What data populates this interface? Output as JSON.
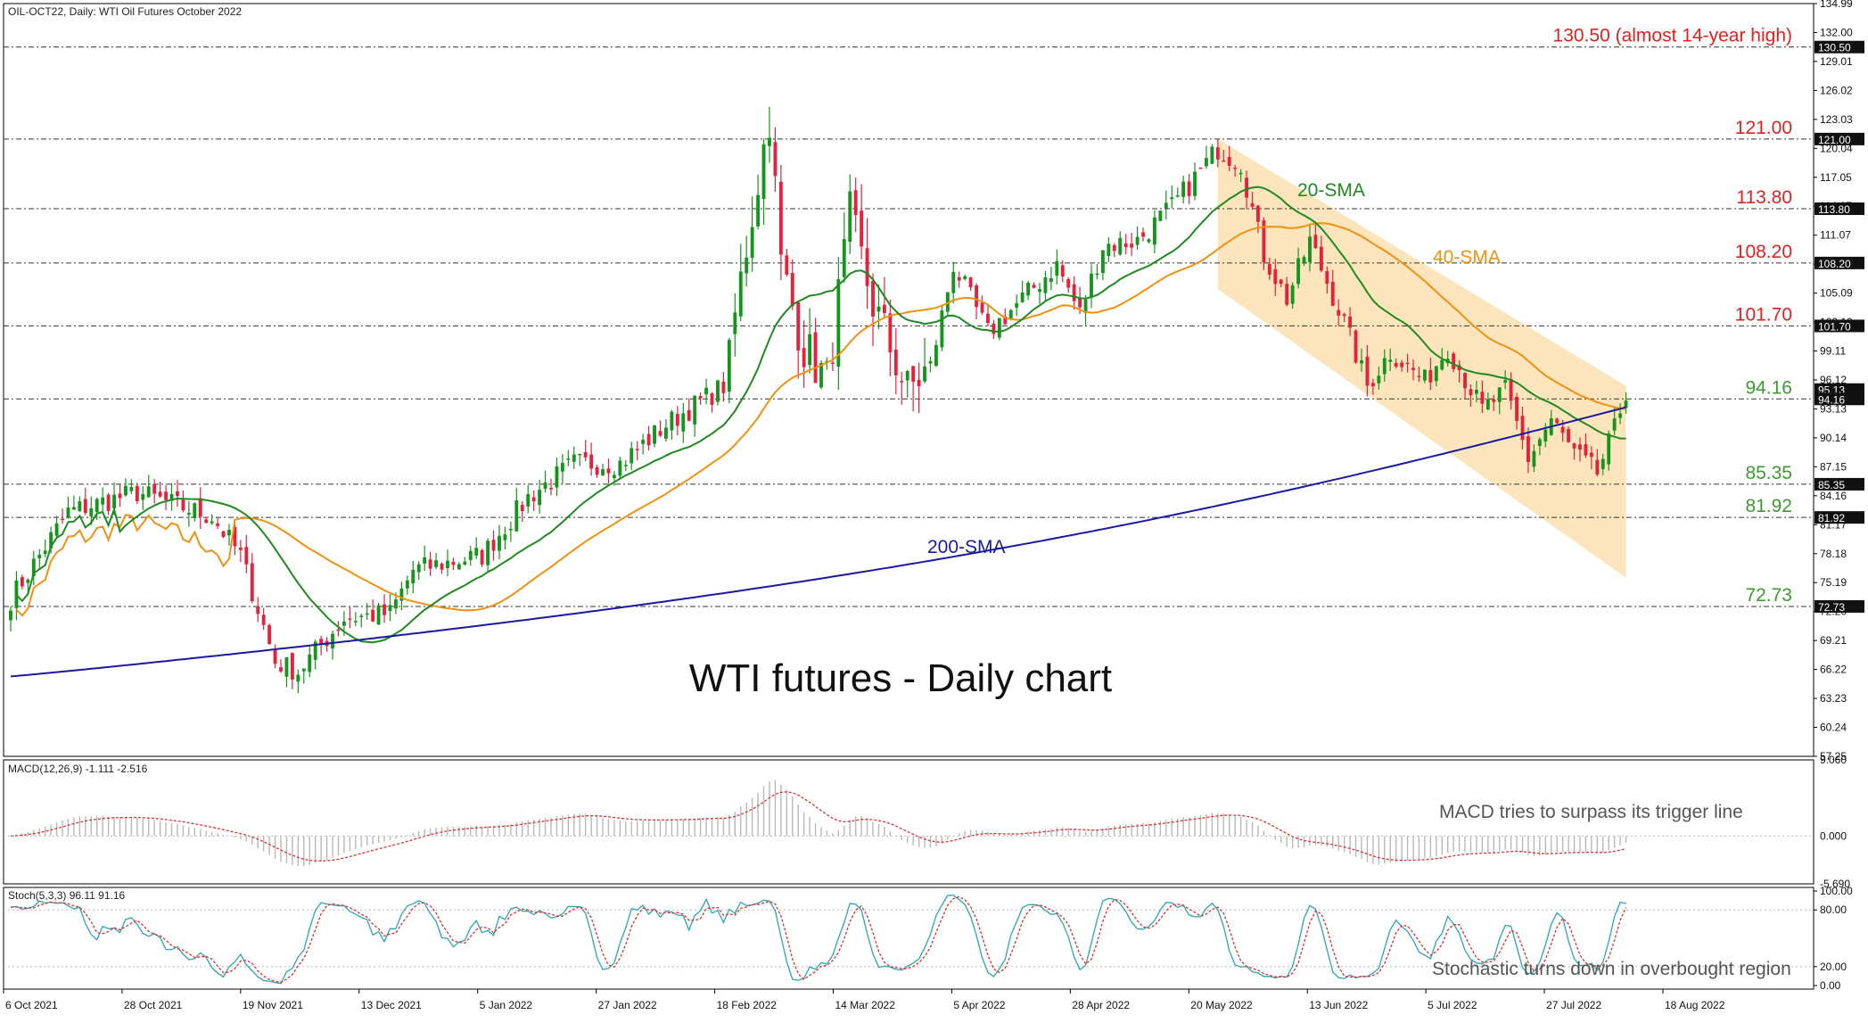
{
  "header": {
    "symbol_line": "OIL-OCT22, Daily:  WTI Oil Futures October 2022"
  },
  "title": "WTI futures - Daily chart",
  "annotations": {
    "sma20": "20-SMA",
    "sma40": "40-SMA",
    "sma200": "200-SMA",
    "macd_note": "MACD tries to surpass its trigger line",
    "stoch_note": "Stochastic turns down in overbought region"
  },
  "colors": {
    "up": "#16951c",
    "down": "#e5213c",
    "sma20": "#1f8a1f",
    "sma40": "#f29111",
    "sma200": "#1a1aa0",
    "channel": "#fbe0b0",
    "level_red": "#e32020",
    "level_green": "#3c9b2f",
    "stoch_k": "#2aa6b4",
    "stoch_d": "#e03030"
  },
  "price_axis": {
    "min": 57.25,
    "max": 134.99,
    "ticks": [
      "134.99",
      "132.00",
      "129.01",
      "126.02",
      "123.03",
      "120.04",
      "117.05",
      "114.07",
      "111.07",
      "108.08",
      "105.09",
      "102.10",
      "99.11",
      "96.12",
      "93.13",
      "90.14",
      "87.15",
      "84.16",
      "81.17",
      "78.18",
      "75.19",
      "72.20",
      "69.21",
      "66.22",
      "63.23",
      "60.24",
      "57.25"
    ],
    "level_flags": [
      "130.50",
      "121.00",
      "113.80",
      "108.20",
      "101.70",
      "95.13",
      "94.16",
      "85.35",
      "81.92",
      "72.73"
    ]
  },
  "time_axis": {
    "labels": [
      "6 Oct 2021",
      "28 Oct 2021",
      "19 Nov 2021",
      "13 Dec 2021",
      "5 Jan 2022",
      "27 Jan 2022",
      "18 Feb 2022",
      "14 Mar 2022",
      "5 Apr 2022",
      "28 Apr 2022",
      "20 May 2022",
      "13 Jun 2022",
      "5 Jul 2022",
      "27 Jul 2022",
      "18 Aug 2022"
    ]
  },
  "levels": [
    {
      "value": 130.5,
      "label": "130.50 (almost 14-year high)",
      "color": "red"
    },
    {
      "value": 121.0,
      "label": "121.00",
      "color": "red"
    },
    {
      "value": 113.8,
      "label": "113.80",
      "color": "red"
    },
    {
      "value": 108.2,
      "label": "108.20",
      "color": "red"
    },
    {
      "value": 101.7,
      "label": "101.70",
      "color": "red"
    },
    {
      "value": 94.16,
      "label": "94.16",
      "color": "green"
    },
    {
      "value": 85.35,
      "label": "85.35",
      "color": "green"
    },
    {
      "value": 81.92,
      "label": "81.92",
      "color": "green"
    },
    {
      "value": 72.73,
      "label": "72.73",
      "color": "green"
    }
  ],
  "macd": {
    "label": "MACD(12,26,9) -1.111 -2.516",
    "ticks": [
      "9.060",
      "0.000",
      "-5.690"
    ]
  },
  "stoch": {
    "label": "Stoch(5,3,3) 96.11 91.16",
    "ticks": [
      "100.00",
      "80.00",
      "20.00",
      "0.00"
    ]
  },
  "chart_data": {
    "type": "candlestick",
    "instrument": "OIL-OCT22",
    "timeframe": "Daily",
    "description": "WTI Oil Futures October 2022",
    "ylim": [
      57.25,
      134.99
    ],
    "anchors": [
      {
        "x": 0,
        "close": 73.5
      },
      {
        "x": 10,
        "close": 82.5
      },
      {
        "x": 22,
        "close": 84.5
      },
      {
        "x": 35,
        "close": 82.0
      },
      {
        "x": 40,
        "close": 78.0
      },
      {
        "x": 46,
        "close": 67.0
      },
      {
        "x": 50,
        "close": 66.0
      },
      {
        "x": 58,
        "close": 71.5
      },
      {
        "x": 66,
        "close": 72.0
      },
      {
        "x": 70,
        "close": 76.5
      },
      {
        "x": 82,
        "close": 78.0
      },
      {
        "x": 90,
        "close": 84.0
      },
      {
        "x": 98,
        "close": 87.5
      },
      {
        "x": 106,
        "close": 87.5
      },
      {
        "x": 114,
        "close": 91.5
      },
      {
        "x": 124,
        "close": 95.5
      },
      {
        "x": 128,
        "close": 110.0
      },
      {
        "x": 132,
        "close": 123.5
      },
      {
        "x": 134,
        "close": 108.0
      },
      {
        "x": 138,
        "close": 99.5
      },
      {
        "x": 142,
        "close": 96.0
      },
      {
        "x": 146,
        "close": 113.0
      },
      {
        "x": 150,
        "close": 104.0
      },
      {
        "x": 156,
        "close": 95.0
      },
      {
        "x": 160,
        "close": 97.5
      },
      {
        "x": 164,
        "close": 108.0
      },
      {
        "x": 170,
        "close": 101.0
      },
      {
        "x": 176,
        "close": 104.5
      },
      {
        "x": 182,
        "close": 108.0
      },
      {
        "x": 186,
        "close": 103.0
      },
      {
        "x": 190,
        "close": 110.0
      },
      {
        "x": 196,
        "close": 110.5
      },
      {
        "x": 202,
        "close": 114.0
      },
      {
        "x": 210,
        "close": 120.0
      },
      {
        "x": 214,
        "close": 118.5
      },
      {
        "x": 218,
        "close": 109.0
      },
      {
        "x": 222,
        "close": 104.5
      },
      {
        "x": 226,
        "close": 110.5
      },
      {
        "x": 232,
        "close": 102.0
      },
      {
        "x": 236,
        "close": 95.5
      },
      {
        "x": 240,
        "close": 99.0
      },
      {
        "x": 246,
        "close": 96.0
      },
      {
        "x": 250,
        "close": 99.5
      },
      {
        "x": 256,
        "close": 93.0
      },
      {
        "x": 260,
        "close": 95.0
      },
      {
        "x": 264,
        "close": 88.0
      },
      {
        "x": 268,
        "close": 92.0
      },
      {
        "x": 272,
        "close": 88.5
      },
      {
        "x": 276,
        "close": 86.5
      },
      {
        "x": 279,
        "close": 91.0
      },
      {
        "x": 281,
        "close": 95.0
      }
    ]
  }
}
